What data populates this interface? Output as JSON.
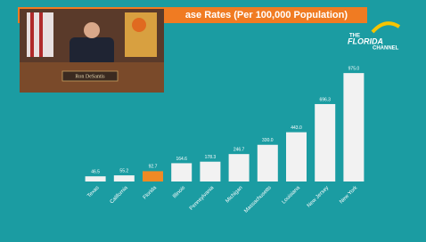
{
  "chart_data": {
    "type": "bar",
    "title": "ase Rates (Per 100,000 Population)",
    "categories": [
      "Texas",
      "California",
      "Florida",
      "Illinois",
      "Pennsylvania",
      "Michigan",
      "Massachusetts",
      "Louisiana",
      "New Jersey",
      "New York"
    ],
    "values": [
      46.5,
      55.2,
      92.7,
      164.6,
      178.3,
      246.7,
      330.0,
      443.0,
      696.3,
      975.0
    ],
    "value_labels": [
      "46.5",
      "55.2",
      "92.7",
      "164.6",
      "178.3",
      "246.7",
      "330.0",
      "443.0",
      "696.3",
      "975.0"
    ],
    "colors": [
      "#f2f2f2",
      "#f2f2f2",
      "#f08a24",
      "#f2f2f2",
      "#f2f2f2",
      "#f2f2f2",
      "#f2f2f2",
      "#f2f2f2",
      "#f2f2f2",
      "#f2f2f2"
    ]
  },
  "inset": {
    "nameplate": "Ron DeSantis"
  },
  "logo": {
    "line1": "THE",
    "line2": "FLORIDA",
    "line3": "CHANNEL"
  }
}
